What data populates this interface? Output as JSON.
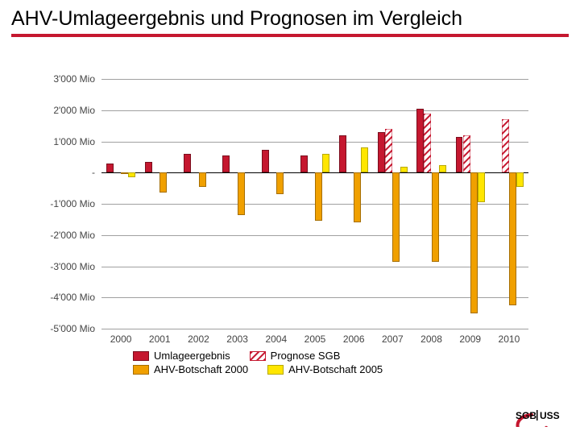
{
  "title": "AHV-Umlageergebnis und Prognosen im Vergleich",
  "chart": {
    "type": "bar",
    "background_color": "#ffffff",
    "grid_color": "#a0a0a0",
    "tick_font_size": 12,
    "tick_color": "#444444",
    "ylim": [
      -5000,
      3000
    ],
    "yticks": [
      -5000,
      -4000,
      -3000,
      -2000,
      -1000,
      0,
      1000,
      2000,
      3000
    ],
    "ytick_labels": [
      "-5'000 Mio",
      "-4'000 Mio",
      "-3'000 Mio",
      "-2'000 Mio",
      "-1'000 Mio",
      "-",
      "1'000 Mio",
      "2'000 Mio",
      "3'000 Mio"
    ],
    "categories": [
      "2000",
      "2001",
      "2002",
      "2003",
      "2004",
      "2005",
      "2006",
      "2007",
      "2008",
      "2009",
      "2010"
    ],
    "series": [
      {
        "key": "umlage",
        "label": "Umlageergebnis",
        "color": "#c5172f",
        "pattern": "solid",
        "border": "#7a0d1d"
      },
      {
        "key": "progSGB",
        "label": "Prognose SGB",
        "color": "#c5172f",
        "pattern": "hatch",
        "border": "#c5172f",
        "hatch_bg": "#ffffff"
      },
      {
        "key": "bot2000",
        "label": "AHV-Botschaft 2000",
        "color": "#f0a000",
        "pattern": "solid",
        "border": "#a56e00"
      },
      {
        "key": "bot2005",
        "label": "AHV-Botschaft 2005",
        "color": "#ffe600",
        "pattern": "solid",
        "border": "#b7a800"
      }
    ],
    "data": {
      "umlage": [
        300,
        350,
        600,
        550,
        720,
        550,
        1200,
        1300,
        2050,
        1150,
        null
      ],
      "progSGB": [
        null,
        null,
        null,
        null,
        null,
        null,
        null,
        1400,
        1900,
        1200,
        1700
      ],
      "bot2000": [
        -50,
        -650,
        -450,
        -1350,
        -700,
        -1550,
        -1600,
        -2850,
        -2850,
        -4500,
        -4250
      ],
      "bot2005": [
        -150,
        null,
        null,
        null,
        null,
        600,
        800,
        200,
        250,
        -950,
        -450
      ]
    },
    "group_width_ratio": 0.76,
    "bar_gap_ratio": 0.02
  },
  "legend": {
    "font_size": 13,
    "rows": [
      [
        "umlage",
        "progSGB"
      ],
      [
        "bot2000",
        "bot2005"
      ]
    ]
  },
  "logo": {
    "text": "SGB|USS",
    "text_color": "#000000",
    "ring_color": "#c5172f"
  }
}
